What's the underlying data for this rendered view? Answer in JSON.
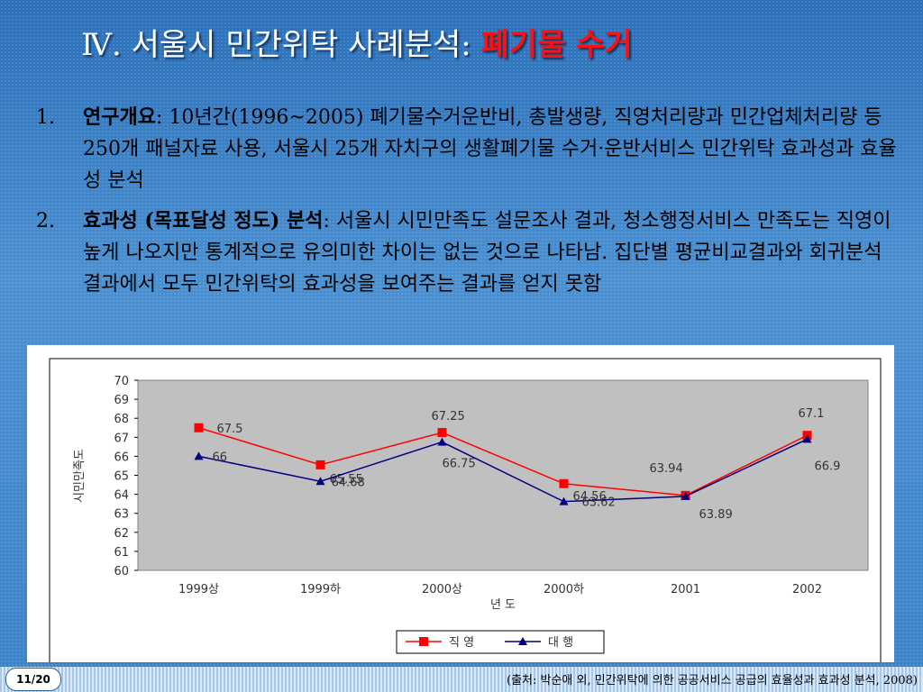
{
  "title": {
    "prefix": "Ⅳ. 서울시 민간위탁 사례분석: ",
    "highlight": "폐기물 수거"
  },
  "items": [
    {
      "number": "1.",
      "label": "연구개요",
      "text": ": 10년간(1996~2005) 폐기물수거운반비, 총발생량, 직영처리량과 민간업체처리량 등 250개 패널자료 사용, 서울시 25개 자치구의 생활폐기물 수거·운반서비스 민간위탁 효과성과 효율성 분석"
    },
    {
      "number": "2.",
      "label": "효과성 (목표달성 정도) 분석",
      "text": ": 서울시 시민만족도 설문조사 결과, 청소행정서비스 만족도는 직영이 높게 나오지만 통계적으로 유의미한 차이는 없는 것으로 나타남. 집단별 평균비교결과와 회귀분석결과에서 모두 민간위탁의 효과성을 보여주는 결과를 얻지 못함"
    }
  ],
  "chart_data": {
    "type": "line",
    "categories": [
      "1999상",
      "1999하",
      "2000상",
      "2000하",
      "2001",
      "2002"
    ],
    "series": [
      {
        "name": "직 영",
        "color": "#ff0000",
        "values": [
          67.5,
          65.55,
          67.25,
          64.56,
          63.94,
          67.1
        ]
      },
      {
        "name": "대 행",
        "color": "#000080",
        "values": [
          66,
          64.68,
          66.75,
          63.62,
          63.89,
          66.9
        ]
      }
    ],
    "ylabel": "시민만족도",
    "xlabel": "년 도",
    "ylim": [
      60,
      70
    ],
    "yticks": [
      60,
      61,
      62,
      63,
      64,
      65,
      66,
      67,
      68,
      69,
      70
    ],
    "grid": false
  },
  "slide_number": "11/20",
  "source": "(출처: 박순애 외, 민간위탁에 의한 공공서비스 공급의 효율성과 효과성 분석, 2008)"
}
